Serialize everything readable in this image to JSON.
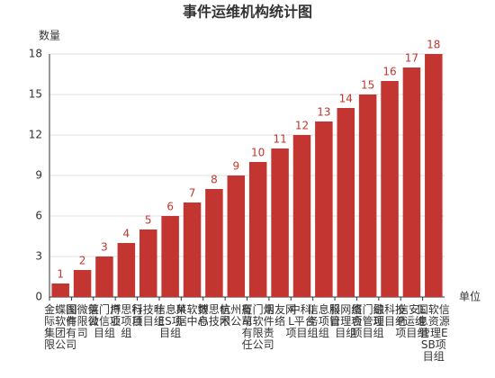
{
  "chart_data": {
    "type": "bar",
    "title": "事件运维机构统计图",
    "y_label": "数量",
    "x_label": "单位",
    "categories": [
      "金蝶国际软件集团有限公司",
      "图微信有限公司",
      "莱门户微信项目组",
      "博思行业项目组",
      "科技叶项目组",
      "信息MES项目组",
      "莱软数据中心",
      "博思信息技术",
      "杭州有限公司",
      "厦门烟草软件有限责任公司",
      "用友网络",
      "中科IL平台项目组",
      "信息服务项目组",
      "科网络管理项目组",
      "厦门综合管理项目组",
      "融科技项目组",
      "信安LP运维项目组",
      "国软信息资源管理ESB项目组"
    ],
    "values": [
      1,
      2,
      3,
      4,
      5,
      6,
      7,
      8,
      9,
      10,
      11,
      12,
      13,
      14,
      15,
      16,
      17,
      18
    ],
    "color": "#c23531",
    "ylim": [
      0,
      18
    ],
    "yticks": [
      0,
      3,
      6,
      9,
      12,
      15,
      18
    ],
    "grid": true
  }
}
